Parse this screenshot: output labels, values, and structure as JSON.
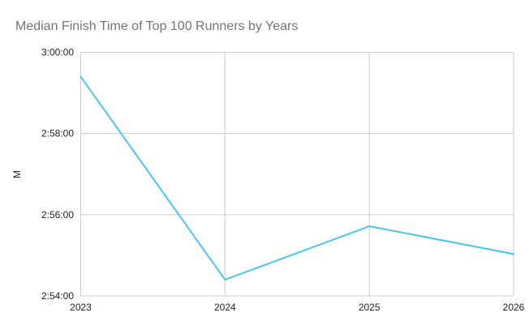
{
  "header": {
    "title": "Median Finish Time of Top 100 Runners by Years",
    "title_color": "#757575"
  },
  "chart_data": {
    "type": "line",
    "title": "Median Finish Time of Top 100 Runners by Years",
    "xlabel": "",
    "ylabel": "M",
    "categories": [
      "2023",
      "2024",
      "2025",
      "2026"
    ],
    "series": [
      {
        "name": "M",
        "values": [
          "2:59:24",
          "2:54:24",
          "2:55:43",
          "2:55:02"
        ],
        "values_seconds": [
          10764,
          10464,
          10543,
          10502
        ],
        "color": "#4DC3F0",
        "stroke_width": 2
      }
    ],
    "y_ticks": [
      {
        "label": "3:00:00",
        "seconds": 10800
      },
      {
        "label": "2:58:00",
        "seconds": 10680
      },
      {
        "label": "2:56:00",
        "seconds": 10560
      },
      {
        "label": "2:54:00",
        "seconds": 10440
      }
    ],
    "ylim_seconds": [
      10440,
      10800
    ],
    "grid": true,
    "legend": "none",
    "gridline_color": "#cccccc",
    "axis_label_color": "#222222",
    "background_color": "#ffffff"
  }
}
